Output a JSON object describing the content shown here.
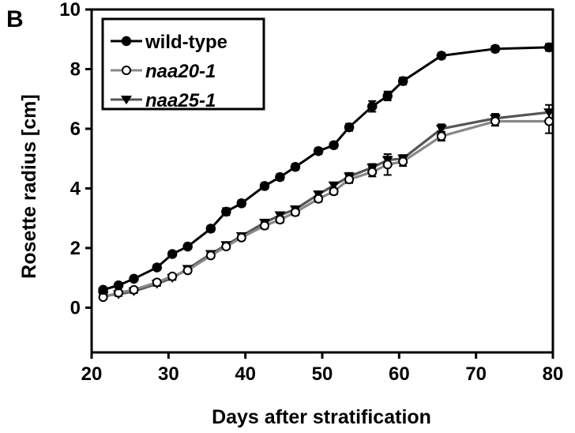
{
  "panel_label": "B",
  "chart_data": {
    "type": "line",
    "xlabel": "Days after stratification",
    "ylabel": "Rosette radius [cm]",
    "xlim": [
      20,
      80
    ],
    "ylim": [
      -1.5,
      10
    ],
    "xticks": [
      20,
      30,
      40,
      50,
      60,
      70,
      80
    ],
    "yticks": [
      0,
      2,
      4,
      6,
      8,
      10
    ],
    "grid": false,
    "legend_position": "top-left",
    "series": [
      {
        "name": "wild-type",
        "color": "#000000",
        "marker": "filled-circle",
        "x": [
          21.5,
          23.5,
          25.5,
          28.5,
          30.5,
          32.5,
          35.5,
          37.5,
          39.5,
          42.5,
          44.5,
          46.5,
          49.5,
          51.5,
          53.5,
          56.5,
          58.5,
          60.5,
          65.5,
          72.5,
          79.5
        ],
        "y": [
          0.6,
          0.75,
          0.97,
          1.35,
          1.8,
          2.05,
          2.65,
          3.22,
          3.5,
          4.08,
          4.38,
          4.72,
          5.25,
          5.45,
          6.05,
          6.75,
          7.1,
          7.6,
          8.45,
          8.68,
          8.73
        ],
        "err": [
          0.06,
          0.07,
          0.07,
          0.08,
          0.08,
          0.08,
          0.1,
          0.12,
          0.1,
          0.1,
          0.1,
          0.1,
          0.1,
          0.1,
          0.12,
          0.18,
          0.15,
          0.12,
          0.1,
          0.1,
          0.12
        ]
      },
      {
        "name": "naa20-1",
        "color": "#888888",
        "marker": "open-circle",
        "x": [
          21.5,
          23.5,
          25.5,
          28.5,
          30.5,
          32.5,
          35.5,
          37.5,
          39.5,
          42.5,
          44.5,
          46.5,
          49.5,
          51.5,
          53.5,
          56.5,
          58.5,
          60.5,
          65.5,
          72.5,
          79.5
        ],
        "y": [
          0.35,
          0.5,
          0.6,
          0.85,
          1.05,
          1.25,
          1.75,
          2.05,
          2.35,
          2.75,
          2.95,
          3.2,
          3.65,
          3.9,
          4.3,
          4.55,
          4.8,
          4.9,
          5.75,
          6.25,
          6.25
        ],
        "err": [
          0.06,
          0.06,
          0.06,
          0.07,
          0.07,
          0.07,
          0.08,
          0.08,
          0.08,
          0.1,
          0.1,
          0.1,
          0.1,
          0.1,
          0.12,
          0.15,
          0.35,
          0.15,
          0.15,
          0.15,
          0.4
        ]
      },
      {
        "name": "naa25-1",
        "color": "#555555",
        "marker": "filled-triangle-down",
        "x": [
          21.5,
          23.5,
          25.5,
          28.5,
          30.5,
          32.5,
          35.5,
          37.5,
          39.5,
          42.5,
          44.5,
          46.5,
          49.5,
          51.5,
          53.5,
          56.5,
          58.5,
          60.5,
          65.5,
          72.5,
          79.5
        ],
        "y": [
          0.4,
          0.45,
          0.55,
          0.8,
          1.0,
          1.3,
          1.8,
          2.1,
          2.4,
          2.85,
          3.1,
          3.3,
          3.8,
          4.1,
          4.4,
          4.7,
          4.95,
          5.0,
          6.0,
          6.35,
          6.55
        ],
        "err": [
          0.06,
          0.06,
          0.06,
          0.07,
          0.07,
          0.07,
          0.08,
          0.08,
          0.08,
          0.1,
          0.1,
          0.1,
          0.1,
          0.1,
          0.12,
          0.12,
          0.12,
          0.12,
          0.15,
          0.15,
          0.25
        ]
      }
    ]
  }
}
